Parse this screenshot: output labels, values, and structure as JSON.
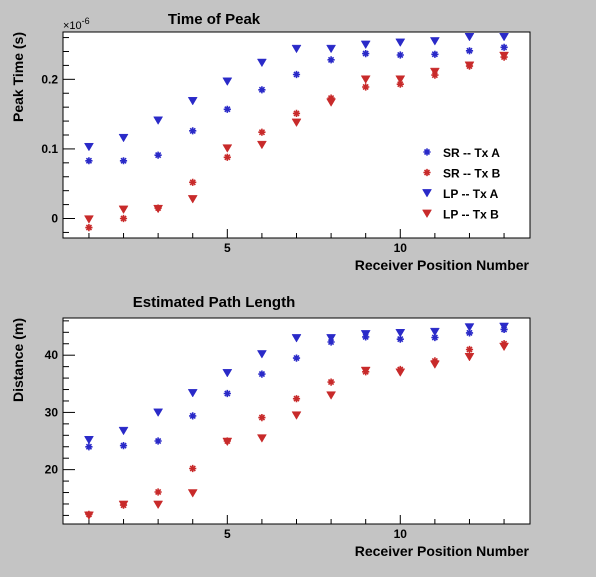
{
  "chart_data": [
    {
      "type": "scatter",
      "title": "Time of Peak",
      "xlabel": "Receiver Position Number",
      "ylabel": "Peak Time (s)",
      "y_exponent_label": "×10",
      "y_exponent_power": "-6",
      "xlim": [
        0.25,
        13.75
      ],
      "ylim": [
        -0.028,
        0.268
      ],
      "x_ticks": [
        5,
        10
      ],
      "x_tick_labels": [
        "5",
        "10"
      ],
      "y_ticks": [
        0,
        0.1,
        0.2
      ],
      "y_tick_labels": [
        "0",
        "0.1",
        "0.2"
      ],
      "legend_position": "right",
      "x": [
        1,
        2,
        3,
        4,
        5,
        6,
        7,
        8,
        9,
        10,
        11,
        12,
        13
      ],
      "series": [
        {
          "name": "SR -- Tx A",
          "marker": "star",
          "color": "#2a2ac8",
          "values": [
            0.083,
            0.083,
            0.091,
            0.126,
            0.157,
            0.185,
            0.207,
            0.228,
            0.237,
            0.235,
            0.236,
            0.241,
            0.246
          ]
        },
        {
          "name": "SR -- Tx B",
          "marker": "star",
          "color": "#c82a2a",
          "values": [
            -0.013,
            0.0,
            0.015,
            0.052,
            0.088,
            0.124,
            0.151,
            0.173,
            0.189,
            0.193,
            0.206,
            0.219,
            0.232
          ]
        },
        {
          "name": "LP -- Tx A",
          "marker": "triangle-down",
          "color": "#2a2ac8",
          "values": [
            0.103,
            0.116,
            0.141,
            0.169,
            0.197,
            0.224,
            0.244,
            0.244,
            0.25,
            0.253,
            0.255,
            0.261,
            0.261
          ]
        },
        {
          "name": "LP -- Tx B",
          "marker": "triangle-down",
          "color": "#c82a2a",
          "values": [
            -0.001,
            0.013,
            0.014,
            0.028,
            0.101,
            0.106,
            0.138,
            0.167,
            0.2,
            0.2,
            0.211,
            0.22,
            0.234
          ]
        }
      ]
    },
    {
      "type": "scatter",
      "title": "Estimated Path Length",
      "xlabel": "Receiver Position Number",
      "ylabel": "Distance (m)",
      "xlim": [
        0.25,
        13.75
      ],
      "ylim": [
        10.5,
        46.5
      ],
      "x_ticks": [
        5,
        10
      ],
      "x_tick_labels": [
        "5",
        "10"
      ],
      "y_ticks": [
        20,
        30,
        40
      ],
      "y_tick_labels": [
        "20",
        "30",
        "40"
      ],
      "x": [
        1,
        2,
        3,
        4,
        5,
        6,
        7,
        8,
        9,
        10,
        11,
        12,
        13
      ],
      "series": [
        {
          "marker": "star",
          "color": "#2a2ac8",
          "values": [
            24.0,
            24.2,
            25.0,
            29.4,
            33.3,
            36.7,
            39.5,
            42.3,
            43.2,
            42.8,
            43.1,
            43.9,
            44.5
          ]
        },
        {
          "marker": "star",
          "color": "#c82a2a",
          "values": [
            12.2,
            13.8,
            16.1,
            20.2,
            25.0,
            29.1,
            32.4,
            35.3,
            37.1,
            37.5,
            39.0,
            41.0,
            42.0
          ]
        },
        {
          "marker": "triangle-down",
          "color": "#2a2ac8",
          "values": [
            25.2,
            26.8,
            30.0,
            33.4,
            36.9,
            40.2,
            43.0,
            43.0,
            43.7,
            43.9,
            44.1,
            44.9,
            45.0
          ]
        },
        {
          "marker": "triangle-down",
          "color": "#c82a2a",
          "values": [
            12.0,
            13.9,
            13.9,
            15.9,
            24.9,
            25.5,
            29.5,
            33.0,
            37.3,
            37.0,
            38.4,
            39.7,
            41.5
          ]
        }
      ]
    }
  ]
}
